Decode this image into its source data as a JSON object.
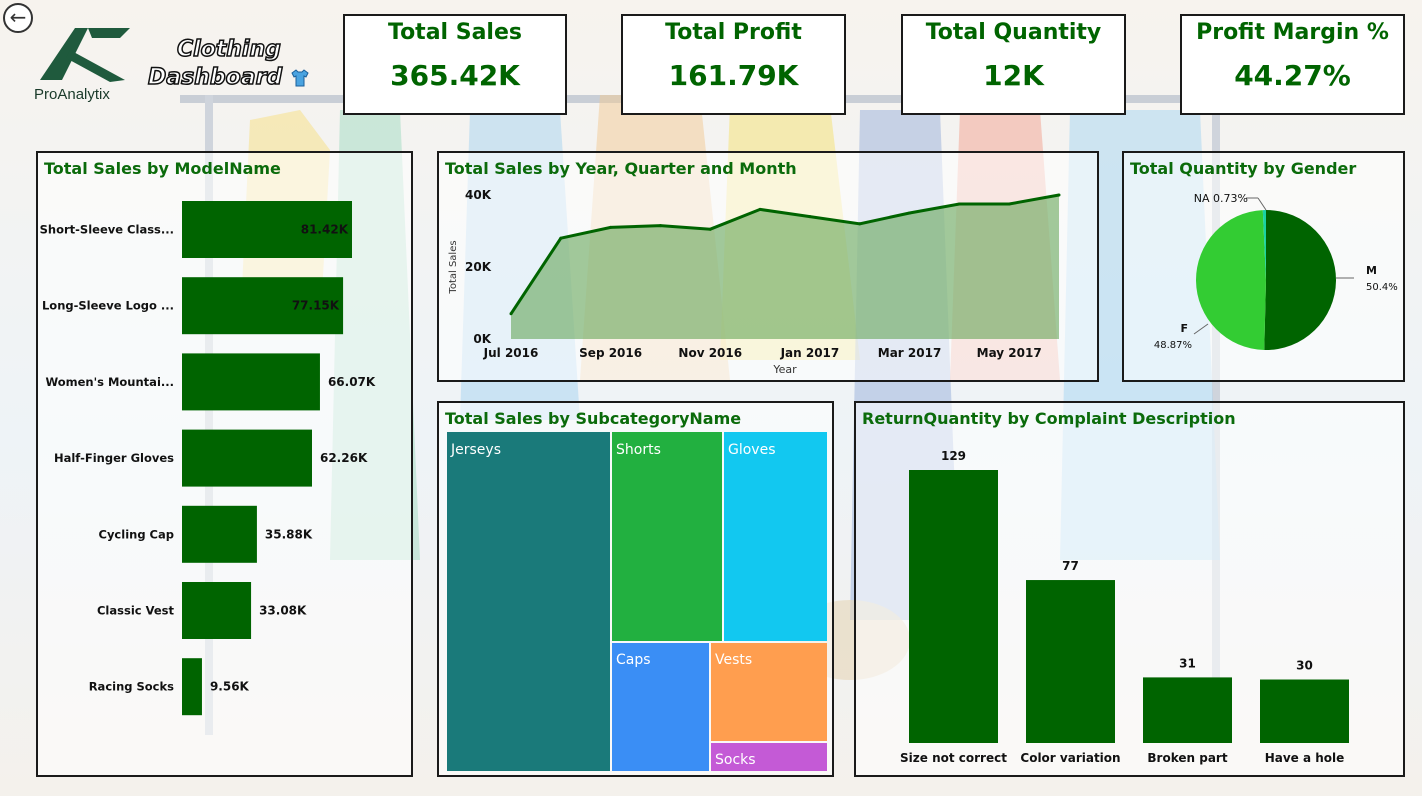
{
  "colors": {
    "dark_green": "#006400",
    "title_green": "#0b6b0b",
    "light_green": "#33cc33",
    "teal": "#1a7a7a",
    "shorts_green": "#22b040",
    "gloves_cyan": "#12c8f0",
    "caps_blue": "#3a8ef5",
    "vests_orange": "#ff9e4f",
    "socks_purple": "#c45ad6",
    "area_fill": "#5a9e4a"
  },
  "header": {
    "back_icon": "back-arrow-icon",
    "brand": "ProAnalytix",
    "title_line1": "Clothing",
    "title_line2": "Dashboard",
    "title_icon": "shirt-icon"
  },
  "kpis": [
    {
      "label": "Total Sales",
      "value": "365.42K"
    },
    {
      "label": "Total Profit",
      "value": "161.79K"
    },
    {
      "label": "Total Quantity",
      "value": "12K"
    },
    {
      "label": "Profit Margin %",
      "value": "44.27%"
    }
  ],
  "model_sales": {
    "title": "Total Sales by ModelName",
    "chart_data": {
      "type": "bar",
      "orientation": "horizontal",
      "categories": [
        "Short-Sleeve Class...",
        "Long-Sleeve Logo ...",
        "Women's Mountai...",
        "Half-Finger Gloves",
        "Cycling Cap",
        "Classic Vest",
        "Racing Socks"
      ],
      "values": [
        81.42,
        77.15,
        66.07,
        62.26,
        35.88,
        33.08,
        9.56
      ],
      "labels": [
        "81.42K",
        "77.15K",
        "66.07K",
        "62.26K",
        "35.88K",
        "33.08K",
        "9.56K"
      ],
      "unit": "K"
    }
  },
  "trend": {
    "title": "Total Sales by Year, Quarter and Month",
    "chart_data": {
      "type": "area",
      "x": [
        "Jul 2016",
        "Aug 2016",
        "Sep 2016",
        "Oct 2016",
        "Nov 2016",
        "Dec 2016",
        "Jan 2017",
        "Feb 2017",
        "Mar 2017",
        "Apr 2017",
        "May 2017",
        "Jun 2017"
      ],
      "values": [
        7000,
        28000,
        31000,
        31500,
        30500,
        36000,
        34000,
        32000,
        35000,
        37500,
        37500,
        40000
      ],
      "xticks": [
        "Jul 2016",
        "Sep 2016",
        "Nov 2016",
        "Jan 2017",
        "Mar 2017",
        "May 2017"
      ],
      "yticks": [
        "0K",
        "20K",
        "40K"
      ],
      "ylim": [
        0,
        40000
      ],
      "xlabel": "Year",
      "ylabel": "Total Sales"
    }
  },
  "gender": {
    "title": "Total Quantity by Gender",
    "chart_data": {
      "type": "pie",
      "categories": [
        "M",
        "F",
        "NA"
      ],
      "values": [
        50.4,
        48.87,
        0.73
      ],
      "labels": [
        "50.4%",
        "48.87%",
        "0.73%"
      ],
      "colors": [
        "#006400",
        "#33cc33",
        "#19d3a3"
      ]
    }
  },
  "subcategory": {
    "title": "Total Sales by SubcategoryName",
    "chart_data": {
      "type": "treemap",
      "categories": [
        "Jerseys",
        "Shorts",
        "Gloves",
        "Caps",
        "Vests",
        "Socks"
      ]
    }
  },
  "returns": {
    "title": "ReturnQuantity by Complaint Description",
    "chart_data": {
      "type": "bar",
      "categories": [
        "Size not correct",
        "Color variation",
        "Broken part",
        "Have a hole"
      ],
      "values": [
        129,
        77,
        31,
        30
      ]
    }
  }
}
